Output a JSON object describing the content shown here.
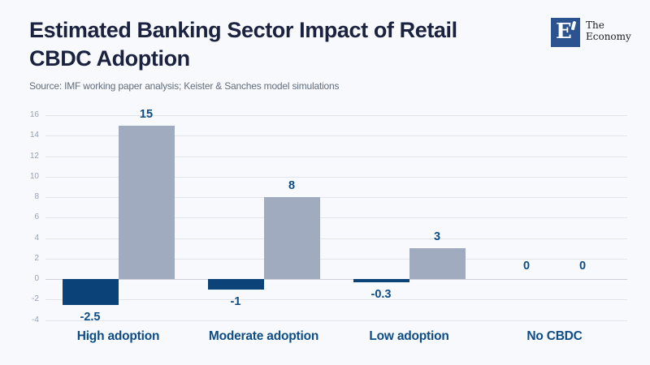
{
  "header": {
    "title_lines": [
      "Estimated Banking Sector Impact of Retail",
      "CBDC Adoption"
    ],
    "source": "Source: IMF working paper analysis; Keister & Sanches model simulations"
  },
  "logo": {
    "letter": "E",
    "name_line1": "The",
    "name_line2": "Economy"
  },
  "chart_data": {
    "type": "bar",
    "title": "Estimated Banking Sector Impact of Retail CBDC Adoption",
    "source": "Source: IMF working paper analysis; Keister & Sanches model simulations",
    "categories": [
      "High adoption",
      "Moderate adoption",
      "Low adoption",
      "No CBDC"
    ],
    "series": [
      {
        "id": "dark-navy-bars",
        "color": "#0b4278",
        "values": [
          -2.5,
          -1,
          -0.3,
          0
        ],
        "labels": [
          "-2.5",
          "-1",
          "-0.3",
          "0"
        ]
      },
      {
        "id": "light-gray-blue-bars",
        "color": "#a1abbf",
        "values": [
          15,
          8,
          3,
          0
        ],
        "labels": [
          "15",
          "8",
          "3",
          "0"
        ]
      }
    ],
    "ylim": [
      -4,
      16
    ],
    "ytick_step": 2,
    "yticks": [
      -4,
      -2,
      0,
      2,
      4,
      6,
      8,
      10,
      12,
      14,
      16
    ],
    "grid": true,
    "legend": false,
    "colors": {
      "background": "#f7f9fc",
      "title": "#1b2240",
      "source_text": "#636d7c",
      "bar_dark": "#0b4278",
      "bar_light": "#a1abbf",
      "value_labels": "#0e4c86",
      "category_labels": "#0e4c86",
      "tick_labels": "#98a1b3",
      "gridline": "#e2e6ec",
      "zero_line": "#ccd1da",
      "logo_square": "#2b5390"
    }
  }
}
